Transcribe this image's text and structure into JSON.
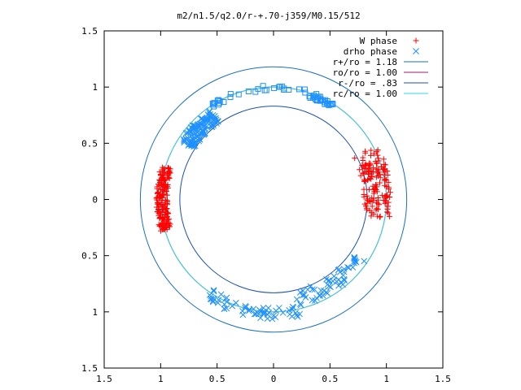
{
  "chart_data": {
    "type": "scatter",
    "title": "m2/n1.5/q2.0/r-+.70-j359/M0.15/512",
    "xlabel": "",
    "ylabel": "",
    "xlim": [
      -1.5,
      1.5
    ],
    "ylim": [
      -1.5,
      1.5
    ],
    "xtick_labels": [
      "1.5",
      "1",
      "0.5",
      "0",
      "0.5",
      "1",
      "1.5"
    ],
    "ytick_labels": [
      "1.5",
      "1",
      "0.5",
      "0",
      "0.5",
      "1",
      "1.5"
    ],
    "grid": false,
    "legend_position": "top-right",
    "point_series": [
      {
        "name": "W phase",
        "marker": "plus",
        "color": "#ff0000",
        "clusters": [
          {
            "angle_range": [
              -10,
              28
            ],
            "radius_range": [
              0.8,
              1.04
            ],
            "count": 150
          },
          {
            "angle_range": [
              163,
              196
            ],
            "radius_range": [
              0.94,
              1.04
            ],
            "count": 170
          }
        ]
      },
      {
        "name": "drho phase",
        "marker": "cross",
        "color": "#1e90ff",
        "clusters": [
          {
            "angle_range": [
              125,
              148
            ],
            "radius_range": [
              0.84,
              0.98
            ],
            "count": 110
          },
          {
            "angle_range": [
              236,
              283
            ],
            "radius_range": [
              0.96,
              1.07
            ],
            "count": 60
          },
          {
            "angle_range": [
              283,
              327
            ],
            "radius_range": [
              0.84,
              0.98
            ],
            "count": 55
          }
        ]
      },
      {
        "name": "",
        "marker": "square",
        "color": "#1e90ff",
        "clusters": [
          {
            "angle_range": [
              57,
              125
            ],
            "radius_range": [
              0.97,
              1.02
            ],
            "count": 40
          },
          {
            "angle_range": [
              57,
              72
            ],
            "radius_range": [
              0.96,
              1.0
            ],
            "count": 18
          }
        ]
      }
    ],
    "circles": [
      {
        "name": "r+/ro = 1.18",
        "radius": 1.18,
        "color": "#1a6fc4"
      },
      {
        "name": "ro/ro = 1.00",
        "radius": 1.0,
        "color": "#9c1a6e"
      },
      {
        "name": "r-/ro = .83",
        "radius": 0.83,
        "color": "#1a4fb0"
      },
      {
        "name": "rc/ro = 1.00",
        "radius": 1.0,
        "color": "#2ed8e0"
      }
    ]
  }
}
